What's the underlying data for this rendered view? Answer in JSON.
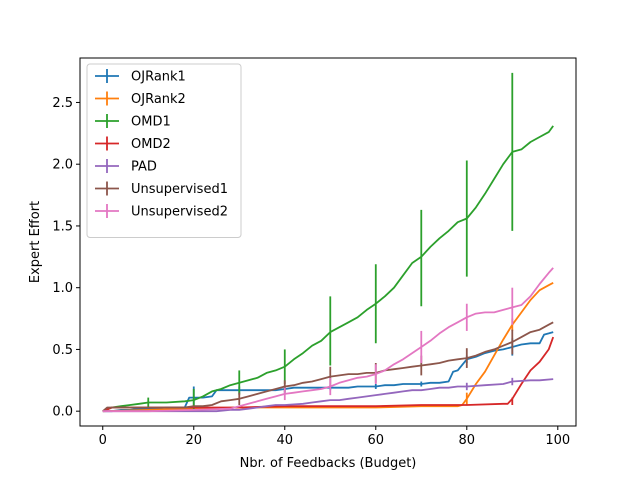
{
  "chart_data": {
    "type": "line",
    "xlabel": "Nbr. of Feedbacks (Budget)",
    "ylabel": "Expert Effort",
    "xlim": [
      -5,
      104
    ],
    "ylim": [
      -0.12,
      2.86
    ],
    "xticks": [
      0,
      20,
      40,
      60,
      80,
      100
    ],
    "xtick_labels": [
      "0",
      "20",
      "40",
      "60",
      "80",
      "100"
    ],
    "yticks": [
      0.0,
      0.5,
      1.0,
      1.5,
      2.0,
      2.5
    ],
    "ytick_labels": [
      "0.0",
      "0.5",
      "1.0",
      "1.5",
      "2.0",
      "2.5"
    ],
    "grid": false,
    "legend_position": "upper-left",
    "series": [
      {
        "name": "OJRank1",
        "color": "#1f77b4",
        "x": [
          0,
          2,
          4,
          6,
          8,
          10,
          12,
          14,
          16,
          18,
          19,
          20,
          22,
          24,
          25,
          26,
          28,
          30,
          32,
          34,
          36,
          38,
          40,
          42,
          44,
          46,
          48,
          50,
          52,
          54,
          56,
          58,
          60,
          62,
          64,
          66,
          68,
          70,
          72,
          74,
          76,
          77,
          78,
          80,
          82,
          84,
          86,
          88,
          90,
          92,
          94,
          96,
          97,
          98,
          99
        ],
        "y": [
          0.0,
          0.0,
          0.01,
          0.01,
          0.02,
          0.02,
          0.02,
          0.03,
          0.03,
          0.03,
          0.11,
          0.11,
          0.11,
          0.12,
          0.17,
          0.17,
          0.17,
          0.17,
          0.17,
          0.17,
          0.17,
          0.17,
          0.18,
          0.19,
          0.19,
          0.19,
          0.19,
          0.19,
          0.19,
          0.19,
          0.2,
          0.2,
          0.2,
          0.21,
          0.21,
          0.22,
          0.22,
          0.22,
          0.23,
          0.23,
          0.24,
          0.32,
          0.33,
          0.42,
          0.44,
          0.47,
          0.49,
          0.5,
          0.52,
          0.54,
          0.55,
          0.55,
          0.62,
          0.63,
          0.64
        ],
        "error_x": [
          20,
          30,
          40,
          50,
          60,
          70,
          80,
          90
        ],
        "error_y": [
          0.11,
          0.17,
          0.18,
          0.19,
          0.2,
          0.22,
          0.42,
          0.52
        ],
        "error_err": [
          0.09,
          0.03,
          0.03,
          0.02,
          0.02,
          0.02,
          0.03,
          0.07
        ]
      },
      {
        "name": "OJRank2",
        "color": "#ff7f0e",
        "x": [
          0,
          10,
          20,
          30,
          40,
          50,
          60,
          70,
          78,
          79,
          80,
          82,
          84,
          86,
          88,
          90,
          92,
          94,
          96,
          98,
          99
        ],
        "y": [
          0.0,
          0.01,
          0.02,
          0.03,
          0.03,
          0.03,
          0.03,
          0.04,
          0.04,
          0.05,
          0.1,
          0.22,
          0.32,
          0.45,
          0.58,
          0.7,
          0.8,
          0.9,
          0.98,
          1.02,
          1.04
        ],
        "error_x": [
          80,
          90
        ],
        "error_y": [
          0.1,
          0.7
        ],
        "error_err": [
          0.05,
          0.05
        ]
      },
      {
        "name": "OMD1",
        "color": "#2ca02c",
        "x": [
          0,
          2,
          4,
          6,
          8,
          10,
          14,
          18,
          20,
          22,
          24,
          26,
          28,
          30,
          32,
          34,
          36,
          38,
          40,
          42,
          44,
          46,
          48,
          50,
          52,
          54,
          56,
          58,
          60,
          62,
          64,
          66,
          68,
          70,
          72,
          74,
          76,
          78,
          80,
          82,
          84,
          86,
          88,
          90,
          92,
          94,
          96,
          98,
          99
        ],
        "y": [
          0.0,
          0.03,
          0.04,
          0.05,
          0.06,
          0.07,
          0.07,
          0.08,
          0.09,
          0.12,
          0.16,
          0.18,
          0.21,
          0.23,
          0.25,
          0.27,
          0.31,
          0.33,
          0.36,
          0.42,
          0.47,
          0.53,
          0.57,
          0.64,
          0.68,
          0.72,
          0.76,
          0.82,
          0.87,
          0.93,
          1.0,
          1.1,
          1.2,
          1.25,
          1.33,
          1.4,
          1.46,
          1.53,
          1.56,
          1.65,
          1.76,
          1.88,
          2.0,
          2.1,
          2.12,
          2.18,
          2.22,
          2.26,
          2.31
        ],
        "error_x": [
          10,
          20,
          30,
          40,
          50,
          60,
          70,
          80,
          90
        ],
        "error_y": [
          0.07,
          0.09,
          0.23,
          0.36,
          0.65,
          0.87,
          1.24,
          1.56,
          2.1
        ],
        "error_err": [
          0.04,
          0.09,
          0.1,
          0.14,
          0.28,
          0.32,
          0.39,
          0.47,
          0.64
        ]
      },
      {
        "name": "OMD2",
        "color": "#d62728",
        "x": [
          0,
          2,
          10,
          20,
          30,
          40,
          50,
          60,
          70,
          80,
          88,
          89,
          90,
          92,
          94,
          96,
          98,
          99
        ],
        "y": [
          0.0,
          0.03,
          0.03,
          0.03,
          0.03,
          0.04,
          0.04,
          0.04,
          0.05,
          0.05,
          0.06,
          0.06,
          0.1,
          0.22,
          0.33,
          0.4,
          0.5,
          0.6
        ],
        "error_x": [
          90
        ],
        "error_y": [
          0.08
        ],
        "error_err": [
          0.03
        ]
      },
      {
        "name": "PAD",
        "color": "#9467bd",
        "x": [
          0,
          10,
          20,
          25,
          28,
          30,
          32,
          34,
          36,
          38,
          40,
          44,
          46,
          48,
          50,
          52,
          54,
          56,
          58,
          60,
          62,
          64,
          66,
          68,
          70,
          72,
          74,
          76,
          78,
          80,
          84,
          88,
          90,
          94,
          96,
          99
        ],
        "y": [
          0.0,
          0.0,
          0.0,
          0.0,
          0.01,
          0.01,
          0.02,
          0.03,
          0.04,
          0.05,
          0.05,
          0.06,
          0.07,
          0.08,
          0.09,
          0.09,
          0.1,
          0.11,
          0.12,
          0.13,
          0.14,
          0.15,
          0.16,
          0.17,
          0.17,
          0.18,
          0.19,
          0.19,
          0.2,
          0.2,
          0.21,
          0.22,
          0.24,
          0.25,
          0.25,
          0.26
        ],
        "error_x": [
          80,
          90
        ],
        "error_y": [
          0.2,
          0.24
        ],
        "error_err": [
          0.03,
          0.03
        ]
      },
      {
        "name": "Unsupervised1",
        "color": "#8c564b",
        "x": [
          0,
          1,
          2,
          4,
          6,
          8,
          10,
          12,
          14,
          16,
          18,
          20,
          22,
          24,
          26,
          28,
          30,
          32,
          34,
          36,
          38,
          40,
          42,
          44,
          46,
          48,
          50,
          52,
          54,
          56,
          58,
          60,
          62,
          64,
          66,
          68,
          70,
          72,
          74,
          76,
          78,
          80,
          82,
          84,
          86,
          88,
          90,
          92,
          94,
          96,
          98,
          99
        ],
        "y": [
          0.0,
          0.03,
          0.03,
          0.03,
          0.03,
          0.03,
          0.03,
          0.03,
          0.03,
          0.03,
          0.03,
          0.04,
          0.04,
          0.05,
          0.08,
          0.09,
          0.1,
          0.12,
          0.14,
          0.16,
          0.18,
          0.2,
          0.21,
          0.23,
          0.24,
          0.26,
          0.28,
          0.29,
          0.3,
          0.3,
          0.31,
          0.31,
          0.33,
          0.34,
          0.35,
          0.36,
          0.37,
          0.38,
          0.39,
          0.41,
          0.42,
          0.43,
          0.45,
          0.48,
          0.5,
          0.53,
          0.56,
          0.6,
          0.64,
          0.66,
          0.7,
          0.72
        ],
        "error_x": [
          30,
          40,
          50,
          60,
          70,
          80,
          90
        ],
        "error_y": [
          0.1,
          0.2,
          0.28,
          0.31,
          0.37,
          0.43,
          0.56
        ],
        "error_err": [
          0.05,
          0.05,
          0.08,
          0.08,
          0.08,
          0.08,
          0.1
        ]
      },
      {
        "name": "Unsupervised2",
        "color": "#e377c2",
        "x": [
          0,
          10,
          20,
          28,
          30,
          32,
          34,
          36,
          38,
          40,
          42,
          44,
          46,
          48,
          50,
          52,
          54,
          56,
          58,
          60,
          62,
          64,
          66,
          68,
          70,
          72,
          74,
          76,
          78,
          80,
          82,
          84,
          86,
          88,
          90,
          92,
          94,
          96,
          98,
          99
        ],
        "y": [
          0.0,
          0.0,
          0.01,
          0.02,
          0.04,
          0.06,
          0.08,
          0.1,
          0.12,
          0.14,
          0.15,
          0.16,
          0.17,
          0.18,
          0.2,
          0.23,
          0.25,
          0.27,
          0.28,
          0.3,
          0.33,
          0.38,
          0.42,
          0.47,
          0.52,
          0.57,
          0.63,
          0.68,
          0.72,
          0.76,
          0.79,
          0.8,
          0.8,
          0.82,
          0.84,
          0.86,
          0.93,
          1.03,
          1.12,
          1.16
        ],
        "error_x": [
          40,
          50,
          60,
          70,
          80,
          90
        ],
        "error_y": [
          0.14,
          0.2,
          0.3,
          0.52,
          0.76,
          0.85
        ],
        "error_err": [
          0.05,
          0.07,
          0.08,
          0.13,
          0.11,
          0.15
        ]
      }
    ]
  }
}
